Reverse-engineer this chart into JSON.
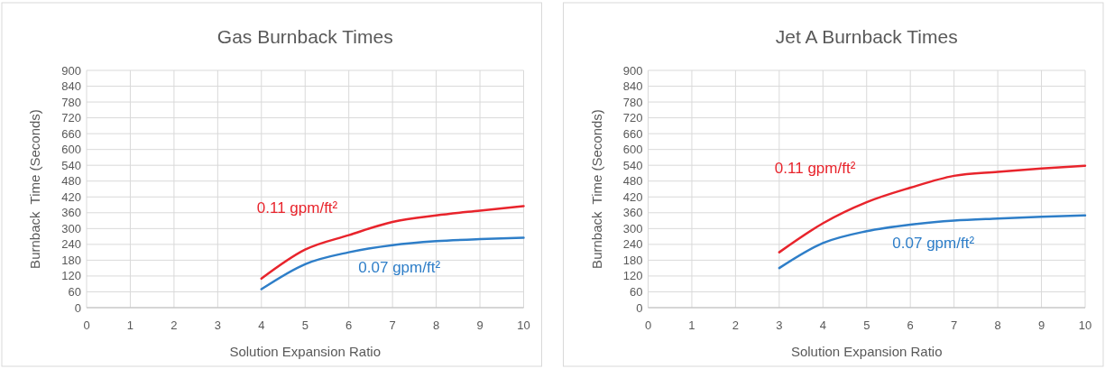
{
  "chart_data": [
    {
      "type": "line",
      "title": "Gas Burnback Times",
      "xlabel": "Solution Expansion Ratio",
      "ylabel": "Burnback  Time (Seconds)",
      "xlim": [
        0,
        10
      ],
      "xticks": [
        0,
        1,
        2,
        3,
        4,
        5,
        6,
        7,
        8,
        9,
        10
      ],
      "ylim": [
        0,
        900
      ],
      "yticks": [
        0,
        60,
        120,
        180,
        240,
        300,
        360,
        420,
        480,
        540,
        600,
        660,
        720,
        780,
        840,
        900
      ],
      "grid": true,
      "legend": false,
      "marker": "none",
      "line_style": "solid",
      "series": [
        {
          "name": "0.11 gpm/ft²",
          "color": "#e8242c",
          "x": [
            4,
            5,
            6,
            7,
            8,
            9,
            10
          ],
          "values": [
            110,
            220,
            275,
            325,
            350,
            368,
            385
          ]
        },
        {
          "name": "0.07 gpm/ft²",
          "color": "#2e7ec8",
          "x": [
            4,
            5,
            6,
            7,
            8,
            9,
            10
          ],
          "values": [
            70,
            165,
            210,
            237,
            252,
            260,
            265
          ]
        }
      ]
    },
    {
      "type": "line",
      "title": "Jet A Burnback Times",
      "xlabel": "Solution Expansion Ratio",
      "ylabel": "Burnback  Time (Seconds)",
      "xlim": [
        0,
        10
      ],
      "xticks": [
        0,
        1,
        2,
        3,
        4,
        5,
        6,
        7,
        8,
        9,
        10
      ],
      "ylim": [
        0,
        900
      ],
      "yticks": [
        0,
        60,
        120,
        180,
        240,
        300,
        360,
        420,
        480,
        540,
        600,
        660,
        720,
        780,
        840,
        900
      ],
      "grid": true,
      "legend": false,
      "marker": "none",
      "line_style": "solid",
      "series": [
        {
          "name": "0.11 gpm/ft²",
          "color": "#e8242c",
          "x": [
            3,
            4,
            5,
            6,
            7,
            8,
            9,
            10
          ],
          "values": [
            210,
            320,
            400,
            455,
            500,
            515,
            528,
            538
          ]
        },
        {
          "name": "0.07 gpm/ft²",
          "color": "#2e7ec8",
          "x": [
            3,
            4,
            5,
            6,
            7,
            8,
            9,
            10
          ],
          "values": [
            150,
            245,
            290,
            315,
            330,
            338,
            345,
            350
          ]
        }
      ]
    }
  ]
}
